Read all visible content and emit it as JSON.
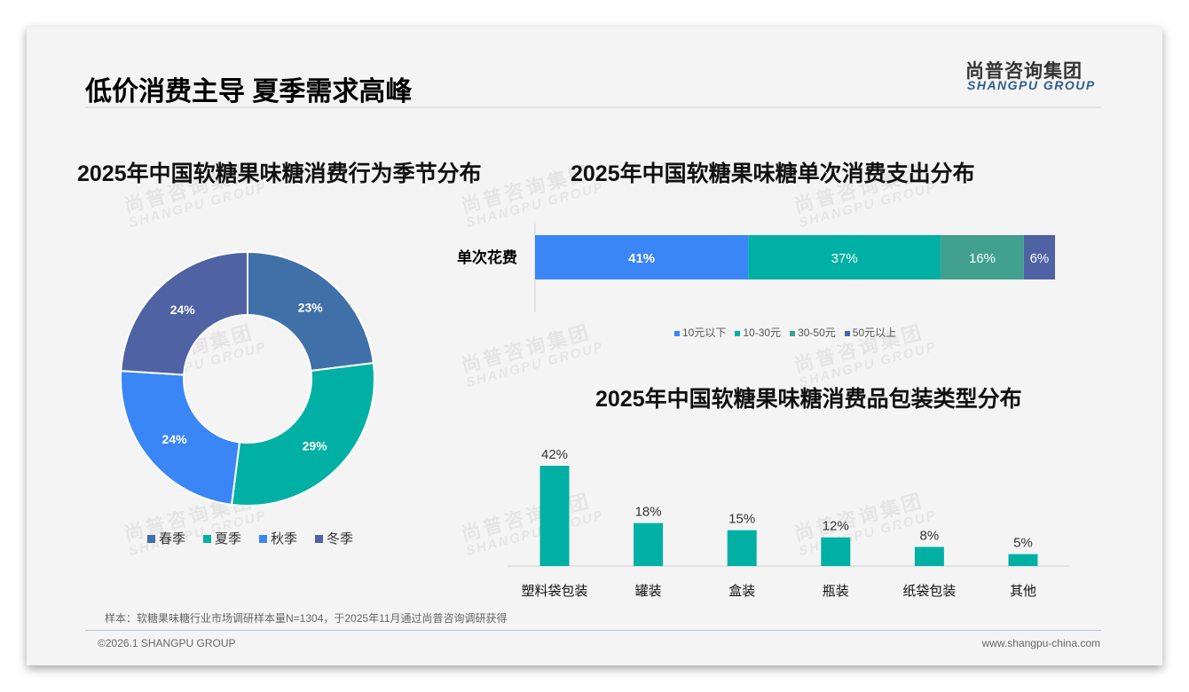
{
  "header": {
    "title": "低价消费主导 夏季需求高峰",
    "logo_cn": "尚普咨询集团",
    "logo_en": "SHANGPU GROUP"
  },
  "watermark": {
    "cn": "尚普咨询集团",
    "en": "SHANGPU GROUP"
  },
  "footer": {
    "note": "样本：软糖果味糖行业市场调研样本量N=1304，于2025年11月通过尚普咨询调研获得",
    "copyright": "©2026.1 SHANGPU GROUP",
    "website": "www.shangpu-china.com"
  },
  "chart_data": [
    {
      "type": "pie",
      "title": "2025年中国软糖果味糖消费行为季节分布",
      "categories": [
        "春季",
        "夏季",
        "秋季",
        "冬季"
      ],
      "values": [
        23,
        29,
        24,
        24
      ],
      "labels": [
        "23%",
        "29%",
        "24%",
        "24%"
      ],
      "colors": [
        "#4070a8",
        "#00b0a4",
        "#3a86f7",
        "#4f62a3"
      ],
      "legend": "bottom"
    },
    {
      "type": "bar",
      "stacked": true,
      "orientation": "horizontal",
      "title": "2025年中国软糖果味糖单次消费支出分布",
      "categories": [
        "单次花费"
      ],
      "series": [
        {
          "name": "10元以下",
          "values": [
            41
          ],
          "label": "41%",
          "color": "#3b86f7"
        },
        {
          "name": "10-30元",
          "values": [
            37
          ],
          "label": "37%",
          "color": "#00b0a4"
        },
        {
          "name": "30-50元",
          "values": [
            16
          ],
          "label": "16%",
          "color": "#41a08e"
        },
        {
          "name": "50元以上",
          "values": [
            6
          ],
          "label": "6%",
          "color": "#4f62a3"
        }
      ],
      "legend": "bottom"
    },
    {
      "type": "bar",
      "title": "2025年中国软糖果味糖消费品包装类型分布",
      "categories": [
        "塑料袋包装",
        "罐装",
        "盒装",
        "瓶装",
        "纸袋包装",
        "其他"
      ],
      "values": [
        42,
        18,
        15,
        12,
        8,
        5
      ],
      "labels": [
        "42%",
        "18%",
        "15%",
        "12%",
        "8%",
        "5%"
      ],
      "color": "#00b0a4",
      "ylim": [
        0,
        45
      ]
    }
  ]
}
